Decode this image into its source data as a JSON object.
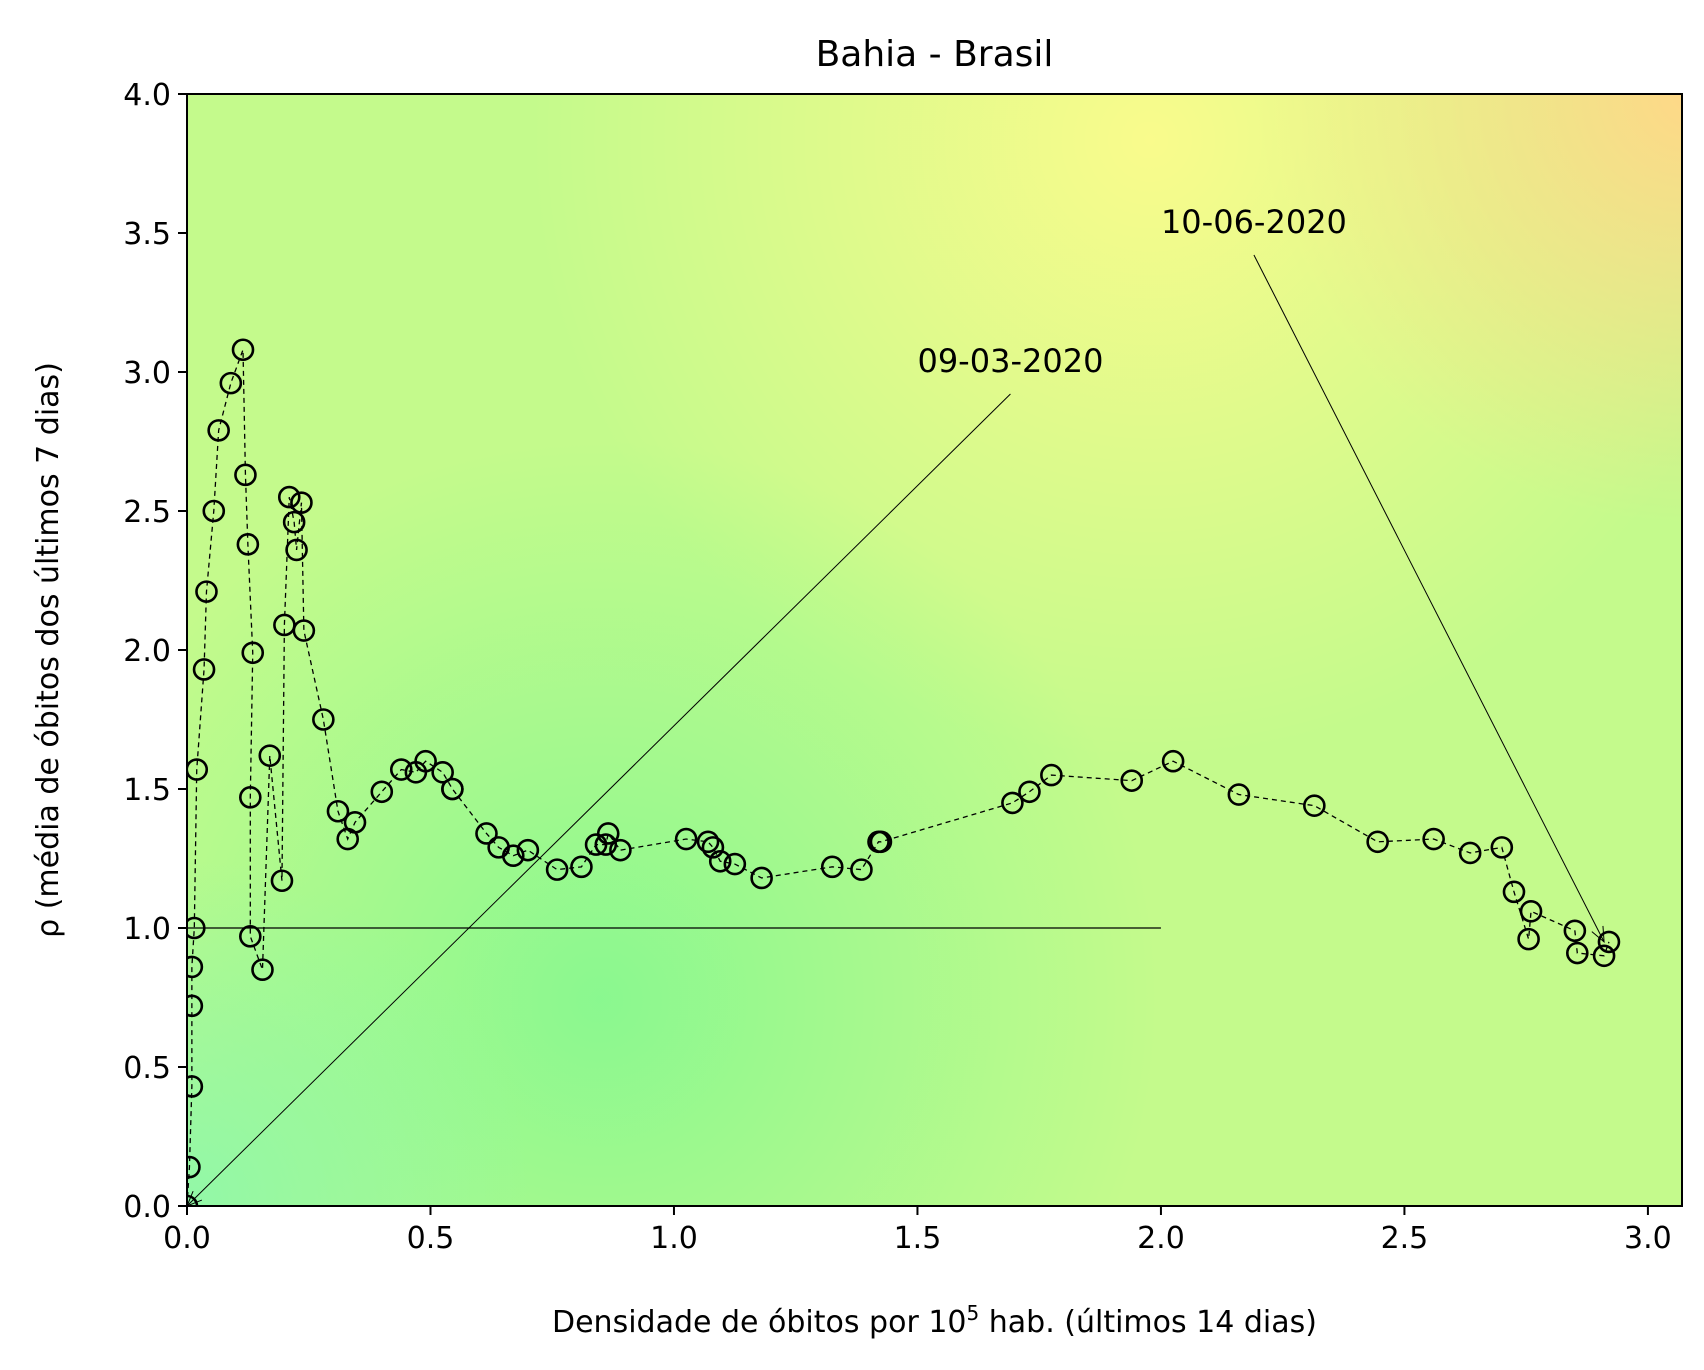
{
  "chart_data": {
    "type": "scatter",
    "title": "Bahia - Brasil",
    "xlabel": "Densidade de óbitos por 10",
    "xlabel_sup": "5",
    "xlabel_tail": " hab. (últimos 14 dias)",
    "ylabel": "ρ (média de óbitos dos últimos 7 dias)",
    "xlim": [
      0.0,
      3.07
    ],
    "ylim": [
      0.0,
      4.0
    ],
    "xticks": [
      "0.0",
      "0.5",
      "1.0",
      "1.5",
      "2.0",
      "2.5",
      "3.0"
    ],
    "yticks": [
      "0.0",
      "0.5",
      "1.0",
      "1.5",
      "2.0",
      "2.5",
      "3.0",
      "3.5",
      "4.0"
    ],
    "grid": false,
    "background": "green-yellow-orange gradient (risk map)",
    "reference_line": {
      "y": 1.0,
      "x_from": 0.0,
      "x_to": 2.0
    },
    "annotations": [
      {
        "text": "09-03-2020",
        "text_at": [
          1.5,
          3.0
        ],
        "points_to": [
          0.0,
          0.0
        ]
      },
      {
        "text": "10-06-2020",
        "text_at": [
          2.0,
          3.5
        ],
        "points_to": [
          2.91,
          0.95
        ]
      }
    ],
    "series": [
      {
        "marker": "open circle",
        "line": "dashed",
        "color": "#000000",
        "x": [
          0.0,
          0.005,
          0.01,
          0.01,
          0.01,
          0.015,
          0.02,
          0.035,
          0.04,
          0.055,
          0.065,
          0.09,
          0.115,
          0.12,
          0.125,
          0.135,
          0.13,
          0.13,
          0.155,
          0.17,
          0.195,
          0.2,
          0.21,
          0.22,
          0.225,
          0.235,
          0.24,
          0.28,
          0.31,
          0.33,
          0.345,
          0.4,
          0.44,
          0.47,
          0.49,
          0.525,
          0.545,
          0.545,
          0.615,
          0.64,
          0.67,
          0.7,
          0.76,
          0.81,
          0.84,
          0.86,
          0.865,
          0.89,
          1.025,
          1.07,
          1.08,
          1.095,
          1.125,
          1.18,
          1.325,
          1.385,
          1.42,
          1.425,
          1.695,
          1.73,
          1.775,
          1.94,
          2.025,
          2.16,
          2.315,
          2.445,
          2.56,
          2.635,
          2.7,
          2.725,
          2.755,
          2.76,
          2.85,
          2.855,
          2.91,
          2.92
        ],
        "y": [
          0.0,
          0.14,
          0.43,
          0.72,
          0.86,
          1.0,
          1.57,
          1.93,
          2.21,
          2.5,
          2.79,
          2.96,
          3.08,
          2.63,
          2.38,
          1.99,
          1.47,
          0.97,
          0.85,
          1.62,
          1.17,
          2.09,
          2.55,
          2.46,
          2.36,
          2.53,
          2.07,
          1.75,
          1.42,
          1.32,
          1.38,
          1.49,
          1.57,
          1.56,
          1.6,
          1.56,
          1.5,
          1.5,
          1.34,
          1.29,
          1.26,
          1.28,
          1.21,
          1.22,
          1.3,
          1.3,
          1.34,
          1.28,
          1.32,
          1.31,
          1.29,
          1.24,
          1.23,
          1.18,
          1.22,
          1.21,
          1.31,
          1.31,
          1.45,
          1.49,
          1.55,
          1.53,
          1.6,
          1.48,
          1.44,
          1.31,
          1.32,
          1.27,
          1.29,
          1.13,
          0.96,
          1.06,
          0.99,
          0.91,
          0.9,
          0.95
        ]
      }
    ]
  }
}
